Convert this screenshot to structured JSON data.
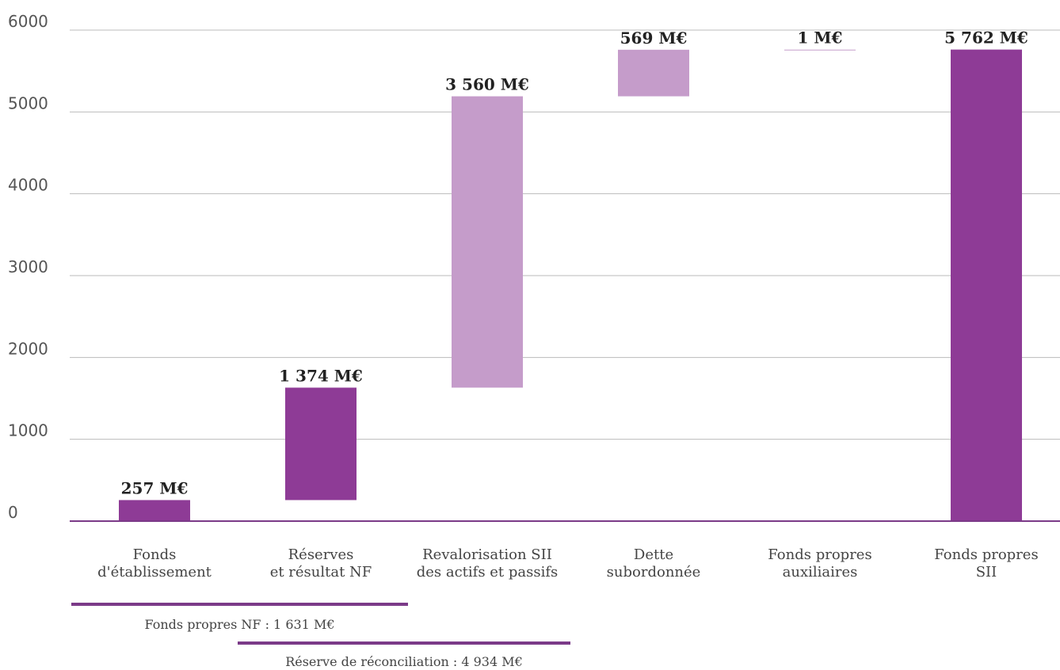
{
  "chart_data": {
    "type": "bar",
    "subtype": "waterfall",
    "ylim": [
      0,
      6000
    ],
    "yticks": [
      0,
      1000,
      2000,
      3000,
      4000,
      5000,
      6000
    ],
    "grid": true,
    "categories": [
      [
        "Fonds",
        "d'établissement"
      ],
      [
        "Réserves",
        "et résultat NF"
      ],
      [
        "Revalorisation SII",
        "des actifs et passifs"
      ],
      [
        "Dette",
        "subordonnée"
      ],
      [
        "Fonds propres",
        "auxiliaires"
      ],
      [
        "Fonds propres",
        "SII"
      ]
    ],
    "bars": [
      {
        "start": 0,
        "end": 257,
        "label": "257 M€",
        "color": "#8e3b96"
      },
      {
        "start": 257,
        "end": 1631,
        "label": "1 374 M€",
        "color": "#8e3b96"
      },
      {
        "start": 1631,
        "end": 5191,
        "label": "3 560 M€",
        "color": "#c59cca"
      },
      {
        "start": 5191,
        "end": 5760,
        "label": "569 M€",
        "color": "#c59cca"
      },
      {
        "start": 5760,
        "end": 5761,
        "label": "1 M€",
        "color": "#c59cca"
      },
      {
        "start": 0,
        "end": 5762,
        "label": "5 762 M€",
        "color": "#8e3b96"
      }
    ],
    "brackets": [
      {
        "label": "Fonds propres NF : 1 631 M€",
        "from_category": 0,
        "to_category": 1
      },
      {
        "label": "Réserve de réconciliation : 4 934 M€",
        "from_category": 1,
        "to_category": 2
      }
    ],
    "colors": {
      "dark": "#8e3b96",
      "light": "#c59cca",
      "axis": "#7b3a88",
      "grid": "#bbbbbb"
    }
  }
}
